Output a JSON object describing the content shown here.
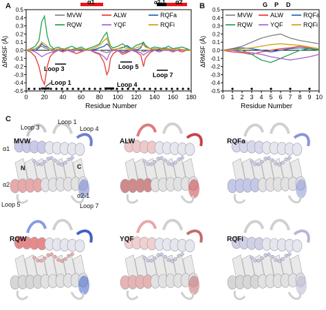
{
  "panels": {
    "a": {
      "letter": "A"
    },
    "b": {
      "letter": "B"
    },
    "c": {
      "letter": "C"
    }
  },
  "colors": {
    "MVW": "#888888",
    "ALW": "#e8413b",
    "RQFa": "#2f66c4",
    "RQW": "#2ea45a",
    "YQF": "#b066d6",
    "RQFi": "#d8a21a",
    "helix_bar": "#e5181b",
    "helix_bar_black": "#000000"
  },
  "chart_a": {
    "ylabel": "ΔRMSF (Å)",
    "xlabel": "Residue Number",
    "yticks": [
      "0.5",
      "0.4",
      "0.3",
      "0.2",
      "0.1",
      "0.0",
      "-0.1",
      "-0.2",
      "-0.3",
      "-0.4",
      "-0.5"
    ],
    "xticks": [
      "0",
      "20",
      "40",
      "60",
      "80",
      "100",
      "120",
      "140",
      "160",
      "180"
    ],
    "helix_labels": {
      "a1": "α1",
      "a21": "α2-1",
      "a2": "α2"
    },
    "loop_labels": {
      "loop1": "Loop 1",
      "loop3": "Loop 3",
      "loop4": "Loop 4",
      "loop5": "Loop 5",
      "loop7": "Loop 7"
    },
    "legend": [
      {
        "key": "MVW",
        "label": "MVW"
      },
      {
        "key": "ALW",
        "label": "ALW"
      },
      {
        "key": "RQFa",
        "label": "RQFa"
      },
      {
        "key": "RQW",
        "label": "RQW"
      },
      {
        "key": "YQF",
        "label": "YQF"
      },
      {
        "key": "RQFi",
        "label": "RQFi"
      }
    ]
  },
  "chart_b": {
    "ylabel": "ΔRMSF (Å)",
    "xlabel": "Residue Number",
    "top_labels": {
      "g": "G",
      "p": "P",
      "d": "D"
    },
    "yticks": [
      "0.5",
      "0.4",
      "0.3",
      "0.2",
      "0.1",
      "0.0",
      "-0.1",
      "-0.2",
      "-0.3",
      "-0.4",
      "-0.5"
    ],
    "xticks": [
      "0",
      "1",
      "2",
      "3",
      "4",
      "5",
      "6",
      "7",
      "8",
      "9",
      "10"
    ],
    "legend": [
      {
        "key": "MVW",
        "label": "MVW"
      },
      {
        "key": "ALW",
        "label": "ALW"
      },
      {
        "key": "RQFa",
        "label": "RQFa"
      },
      {
        "key": "RQW",
        "label": "RQW"
      },
      {
        "key": "YQF",
        "label": "YQF"
      },
      {
        "key": "RQFi",
        "label": "RQFi"
      }
    ]
  },
  "chart_data": [
    {
      "type": "line",
      "xlabel": "Residue Number",
      "ylabel": "ΔRMSF (Å)",
      "xlim": [
        0,
        180
      ],
      "ylim": [
        -0.5,
        0.5
      ],
      "x": [
        0,
        5,
        10,
        14,
        17,
        20,
        23,
        26,
        30,
        35,
        40,
        45,
        50,
        55,
        60,
        65,
        70,
        75,
        80,
        85,
        88,
        90,
        92,
        95,
        100,
        105,
        110,
        115,
        120,
        125,
        128,
        130,
        135,
        140,
        145,
        150,
        155,
        160,
        165,
        170,
        175,
        180
      ],
      "series": [
        {
          "name": "MVW",
          "values": [
            0.0,
            0.01,
            0.02,
            0.04,
            0.05,
            0.03,
            0.02,
            0.0,
            -0.01,
            0.0,
            0.01,
            0.0,
            -0.01,
            0.0,
            0.01,
            0.0,
            0.0,
            0.01,
            0.0,
            -0.02,
            -0.03,
            -0.02,
            0.0,
            0.01,
            0.0,
            -0.02,
            -0.01,
            0.0,
            0.01,
            0.0,
            -0.02,
            -0.01,
            0.0,
            0.02,
            0.01,
            0.0,
            0.01,
            0.0,
            0.0,
            0.01,
            0.0,
            0.0
          ]
        },
        {
          "name": "ALW",
          "values": [
            0.0,
            -0.02,
            -0.08,
            -0.2,
            -0.35,
            -0.42,
            -0.2,
            -0.08,
            -0.03,
            0.0,
            -0.02,
            0.0,
            -0.02,
            -0.04,
            -0.02,
            0.0,
            0.0,
            -0.03,
            -0.05,
            -0.15,
            -0.3,
            -0.25,
            -0.1,
            -0.04,
            0.0,
            -0.05,
            -0.03,
            0.0,
            -0.02,
            -0.06,
            -0.2,
            -0.1,
            -0.03,
            0.0,
            -0.02,
            0.0,
            0.0,
            -0.02,
            0.0,
            -0.02,
            0.0,
            0.0
          ]
        },
        {
          "name": "RQFa",
          "values": [
            0.0,
            0.01,
            0.0,
            0.03,
            0.08,
            0.05,
            0.04,
            0.02,
            0.01,
            0.0,
            0.02,
            0.0,
            0.01,
            0.02,
            0.0,
            0.01,
            0.0,
            0.01,
            0.03,
            0.05,
            0.08,
            0.06,
            0.02,
            0.0,
            0.02,
            0.03,
            0.06,
            0.02,
            0.0,
            0.03,
            0.1,
            0.06,
            0.02,
            0.0,
            0.01,
            0.03,
            0.02,
            0.01,
            0.02,
            0.0,
            0.01,
            0.0
          ]
        },
        {
          "name": "RQW",
          "values": [
            0.0,
            0.02,
            0.05,
            0.12,
            0.35,
            0.42,
            0.18,
            0.06,
            0.02,
            0.04,
            0.01,
            0.03,
            0.05,
            0.02,
            0.04,
            0.01,
            0.03,
            0.05,
            0.08,
            0.18,
            0.22,
            0.12,
            0.05,
            0.03,
            0.05,
            0.08,
            0.04,
            0.02,
            0.06,
            0.08,
            0.1,
            0.05,
            0.02,
            0.04,
            0.03,
            0.02,
            0.05,
            0.02,
            0.03,
            0.04,
            0.02,
            0.0
          ]
        },
        {
          "name": "YQF",
          "values": [
            0.0,
            0.0,
            -0.02,
            -0.05,
            -0.08,
            -0.06,
            -0.04,
            -0.03,
            -0.02,
            0.0,
            -0.01,
            0.0,
            -0.02,
            0.0,
            -0.01,
            0.0,
            0.0,
            -0.02,
            -0.04,
            -0.08,
            -0.12,
            -0.06,
            -0.02,
            0.0,
            -0.01,
            -0.03,
            -0.02,
            0.0,
            -0.01,
            -0.03,
            -0.06,
            -0.04,
            -0.01,
            0.0,
            -0.02,
            0.0,
            0.0,
            -0.01,
            0.0,
            0.0,
            0.0,
            0.0
          ]
        },
        {
          "name": "RQFi",
          "values": [
            0.0,
            0.01,
            0.02,
            0.05,
            0.1,
            0.08,
            0.05,
            0.02,
            0.0,
            0.02,
            0.01,
            0.02,
            0.0,
            0.01,
            0.02,
            0.0,
            0.01,
            0.03,
            0.06,
            0.12,
            0.15,
            0.08,
            0.03,
            0.01,
            0.02,
            0.04,
            0.02,
            0.01,
            0.03,
            0.05,
            0.07,
            0.04,
            0.02,
            0.01,
            0.02,
            0.01,
            0.02,
            0.01,
            0.02,
            0.01,
            0.0,
            0.0
          ]
        }
      ]
    },
    {
      "type": "line",
      "xlabel": "Residue Number",
      "ylabel": "ΔRMSF (Å)",
      "xlim": [
        0,
        10
      ],
      "ylim": [
        -0.5,
        0.5
      ],
      "x": [
        0,
        1,
        2,
        3,
        4,
        5,
        6,
        7,
        8,
        9,
        10
      ],
      "series": [
        {
          "name": "MVW",
          "values": [
            0.0,
            0.02,
            0.05,
            0.1,
            0.15,
            0.18,
            0.2,
            0.15,
            0.12,
            0.1,
            0.08
          ]
        },
        {
          "name": "ALW",
          "values": [
            0.0,
            -0.02,
            -0.03,
            -0.05,
            -0.02,
            0.0,
            0.02,
            0.03,
            0.05,
            0.03,
            0.0
          ]
        },
        {
          "name": "RQFa",
          "values": [
            0.0,
            0.02,
            0.03,
            0.02,
            0.0,
            -0.02,
            0.0,
            0.02,
            0.03,
            0.02,
            0.01
          ]
        },
        {
          "name": "RQW",
          "values": [
            0.0,
            0.01,
            0.0,
            -0.05,
            -0.12,
            -0.15,
            -0.1,
            -0.05,
            0.0,
            0.02,
            0.0
          ]
        },
        {
          "name": "YQF",
          "values": [
            0.0,
            0.0,
            -0.02,
            -0.03,
            -0.05,
            -0.08,
            -0.1,
            -0.12,
            -0.1,
            -0.08,
            -0.05
          ]
        },
        {
          "name": "RQFi",
          "values": [
            0.0,
            0.01,
            0.02,
            0.03,
            0.05,
            0.07,
            0.08,
            0.07,
            0.06,
            0.04,
            0.02
          ]
        }
      ]
    }
  ],
  "structures": {
    "cells": [
      {
        "label": "MVW"
      },
      {
        "label": "ALW"
      },
      {
        "label": "RQFa"
      },
      {
        "label": "RQW"
      },
      {
        "label": "YQF"
      },
      {
        "label": "RQFi"
      }
    ],
    "annotations": {
      "loop3": "Loop 3",
      "loop1": "Loop 1",
      "loop4": "Loop 4",
      "a1": "α1",
      "n": "N",
      "c": "C",
      "a2": "α2",
      "loop5": "Loop 5",
      "a21": "α2-1",
      "loop7": "Loop 7"
    }
  }
}
